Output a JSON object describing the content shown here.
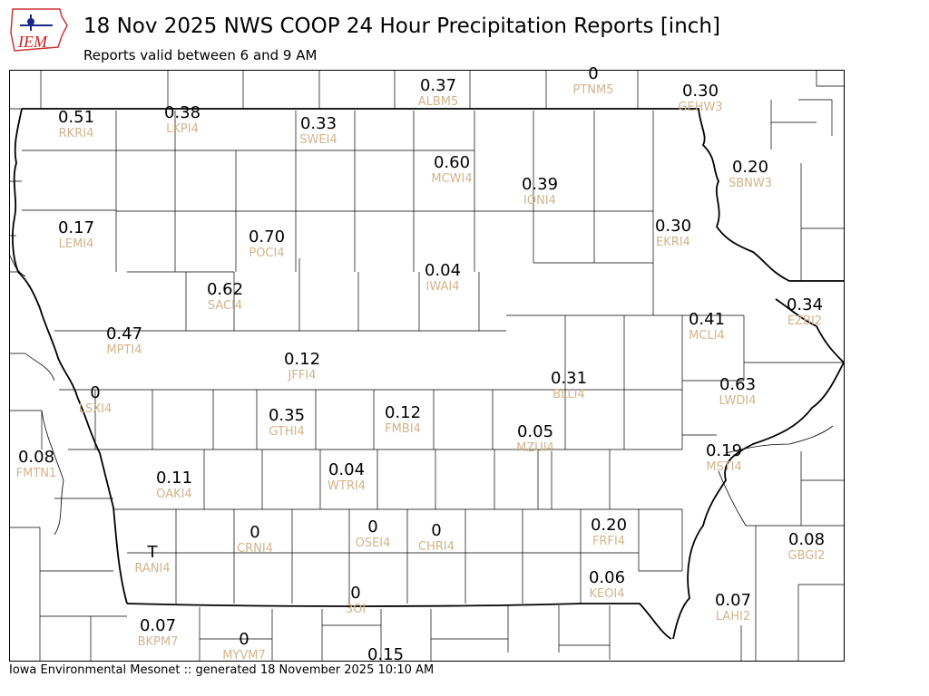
{
  "header": {
    "logo_text": "IEM",
    "title": "18 Nov 2025 NWS COOP 24 Hour Precipitation Reports [inch]",
    "subtitle": "Reports valid between 6 and 9 AM"
  },
  "footer": {
    "text": "Iowa Environmental Mesonet :: generated 18 November 2025 10:10 AM"
  },
  "colors": {
    "station_id": "#d2b48c",
    "value": "#000000",
    "border": "#000000"
  },
  "stations": [
    {
      "id": "ALBM5",
      "value": "0.37"
    },
    {
      "id": "PTNM5",
      "value": "0"
    },
    {
      "id": "GEHW3",
      "value": "0.30"
    },
    {
      "id": "RKRI4",
      "value": "0.51"
    },
    {
      "id": "LKPI4",
      "value": "0.38"
    },
    {
      "id": "SWEI4",
      "value": "0.33"
    },
    {
      "id": "MCWI4",
      "value": "0.60"
    },
    {
      "id": "IONI4",
      "value": "0.39"
    },
    {
      "id": "SBNW3",
      "value": "0.20"
    },
    {
      "id": "LEMI4",
      "value": "0.17"
    },
    {
      "id": "POCI4",
      "value": "0.70"
    },
    {
      "id": "EKRI4",
      "value": "0.30"
    },
    {
      "id": "IWAI4",
      "value": "0.04"
    },
    {
      "id": "SACI4",
      "value": "0.62"
    },
    {
      "id": "EZBI2",
      "value": "0.34"
    },
    {
      "id": "MCLI4",
      "value": "0.41"
    },
    {
      "id": "MPTI4",
      "value": "0.47"
    },
    {
      "id": "JFFI4",
      "value": "0.12"
    },
    {
      "id": "BLLI4",
      "value": "0.31"
    },
    {
      "id": "LWDI4",
      "value": "0.63"
    },
    {
      "id": "LSXI4",
      "value": "0"
    },
    {
      "id": "GTHI4",
      "value": "0.35"
    },
    {
      "id": "FMBI4",
      "value": "0.12"
    },
    {
      "id": "MZUI4",
      "value": "0.05"
    },
    {
      "id": "FMTN1",
      "value": "0.08"
    },
    {
      "id": "MSTI4",
      "value": "0.19"
    },
    {
      "id": "OAKI4",
      "value": "0.11"
    },
    {
      "id": "WTRI4",
      "value": "0.04"
    },
    {
      "id": "CRNI4",
      "value": "0"
    },
    {
      "id": "OSEI4",
      "value": "0"
    },
    {
      "id": "CHRI4",
      "value": "0"
    },
    {
      "id": "FRFI4",
      "value": "0.20"
    },
    {
      "id": "GBGI2",
      "value": "0.08"
    },
    {
      "id": "RANI4",
      "value": "T"
    },
    {
      "id": "KEOI4",
      "value": "0.06"
    },
    {
      "id": "3OI",
      "value": "0"
    },
    {
      "id": "LAHI2",
      "value": "0.07"
    },
    {
      "id": "BKPM7",
      "value": "0.07"
    },
    {
      "id": "MYVM7",
      "value": "0"
    },
    {
      "id": "",
      "value": "0.15"
    }
  ]
}
